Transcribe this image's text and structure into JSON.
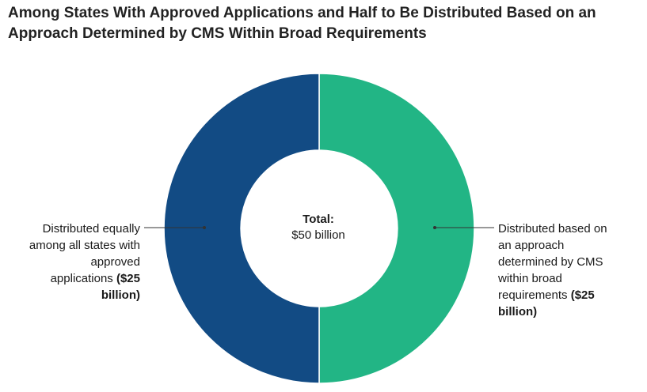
{
  "title_lines": [
    "Among States With Approved Applications and Half to Be Distributed Based on an",
    "Approach Determined by CMS Within Broad Requirements"
  ],
  "center": {
    "title": "Total:",
    "value": "$50 billion"
  },
  "callouts": {
    "left": {
      "lines": [
        "Distributed equally",
        "among all states with",
        "approved"
      ],
      "line4_text": "applications ",
      "line4_bold": "($25",
      "line5_bold": "billion)"
    },
    "right": {
      "lines": [
        "Distributed based on",
        "an approach",
        "determined by CMS",
        "within broad"
      ],
      "line5_text": "requirements ",
      "line5_bold": "($25",
      "line6_bold": "billion)"
    }
  },
  "colors": {
    "left_slice": "#124b84",
    "right_slice": "#22b585",
    "leader": "#333333"
  },
  "chart_data": {
    "type": "pie",
    "variant": "donut",
    "unit": "billion dollars",
    "total": 50,
    "slices": [
      {
        "label": "Distributed based on an approach determined by CMS within broad requirements ($25 billion)",
        "value": 25,
        "color": "#22b585"
      },
      {
        "label": "Distributed equally among all states with approved applications ($25 billion)",
        "value": 25,
        "color": "#124b84"
      }
    ]
  }
}
